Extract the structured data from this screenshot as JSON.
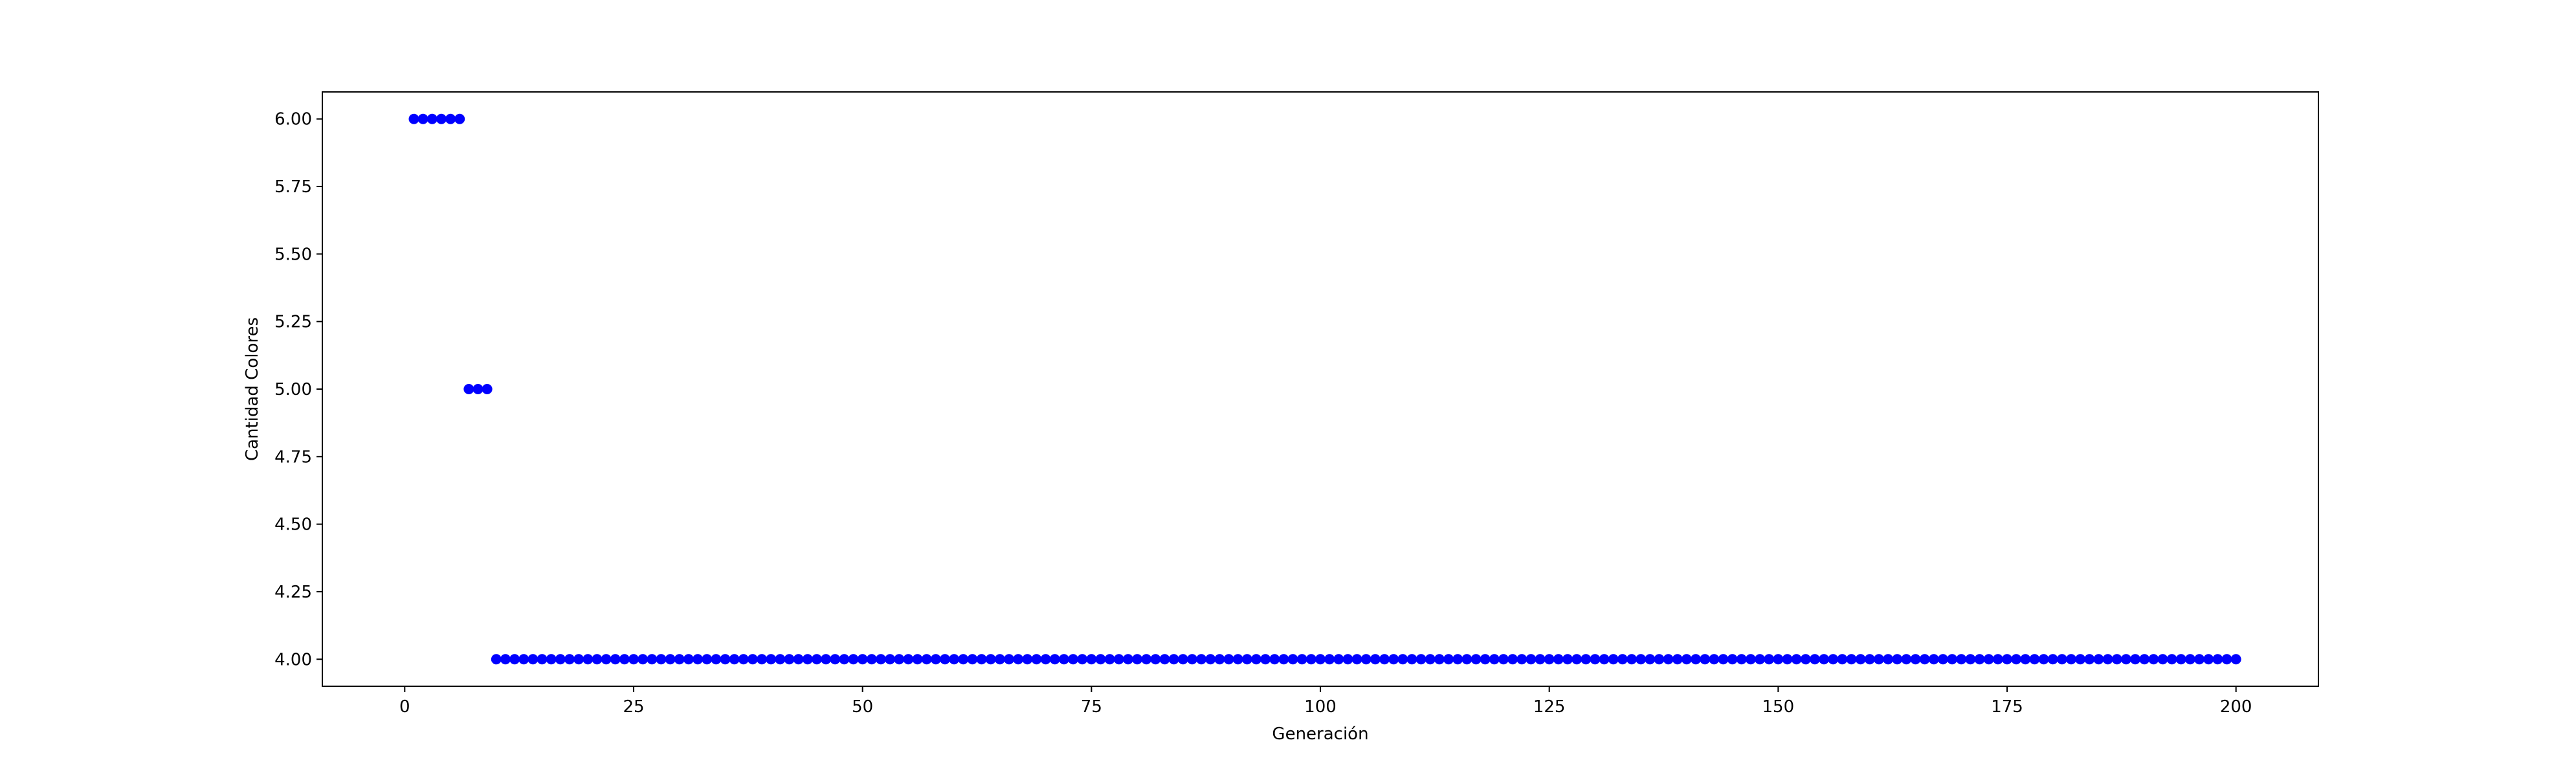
{
  "chart_data": {
    "type": "scatter",
    "title": "",
    "xlabel": "Generación",
    "ylabel": "Cantidad Colores",
    "xlim": [
      -9,
      209
    ],
    "ylim": [
      3.9,
      6.1
    ],
    "xticks": [
      0,
      25,
      50,
      75,
      100,
      125,
      150,
      175,
      200
    ],
    "xtick_labels": [
      "0",
      "25",
      "50",
      "75",
      "100",
      "125",
      "150",
      "175",
      "200"
    ],
    "yticks": [
      4.0,
      4.25,
      4.5,
      4.75,
      5.0,
      5.25,
      5.5,
      5.75,
      6.0
    ],
    "ytick_labels": [
      "4.00",
      "4.25",
      "4.50",
      "4.75",
      "5.00",
      "5.25",
      "5.50",
      "5.75",
      "6.00"
    ],
    "grid": false,
    "marker_color": "#0000ff",
    "series": [
      {
        "segments": [
          {
            "x_start": 1,
            "x_end": 6,
            "y": 6
          },
          {
            "x_start": 7,
            "x_end": 9,
            "y": 5
          },
          {
            "x_start": 10,
            "x_end": 200,
            "y": 4
          }
        ]
      }
    ]
  }
}
